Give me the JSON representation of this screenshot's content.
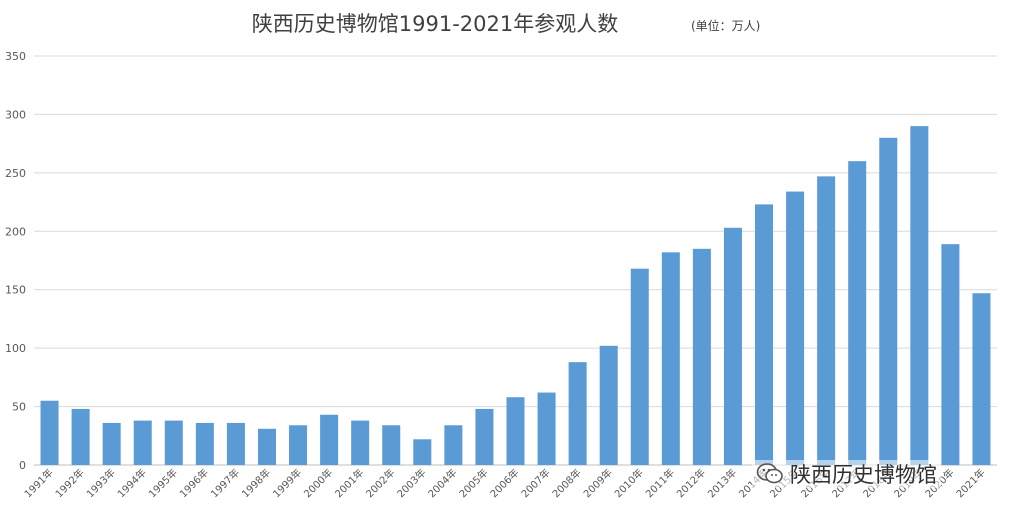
{
  "chart_data": {
    "type": "bar",
    "title": "陕西历史博物馆1991-2021年参观人数",
    "unit_note": "(单位：万人)",
    "xlabel": "",
    "ylabel": "",
    "ylim": [
      0,
      350
    ],
    "yticks": [
      0,
      50,
      100,
      150,
      200,
      250,
      300,
      350
    ],
    "grid": true,
    "legend": "none",
    "bar_color": "#5b9bd5",
    "categories": [
      "1991年",
      "1992年",
      "1993年",
      "1994年",
      "1995年",
      "1996年",
      "1997年",
      "1998年",
      "1999年",
      "2000年",
      "2001年",
      "2002年",
      "2003年",
      "2004年",
      "2005年",
      "2006年",
      "2007年",
      "2008年",
      "2009年",
      "2010年",
      "2011年",
      "2012年",
      "2013年",
      "2014年",
      "2015年",
      "2016年",
      "2017年",
      "2018年",
      "2019年",
      "2020年",
      "2021年"
    ],
    "values": [
      55,
      48,
      36,
      38,
      38,
      36,
      36,
      31,
      34,
      43,
      38,
      34,
      22,
      34,
      48,
      58,
      62,
      88,
      102,
      168,
      182,
      185,
      203,
      223,
      234,
      247,
      260,
      280,
      290,
      189,
      147
    ]
  },
  "watermark": {
    "text": "陕西历史博物馆",
    "icon": "wechat-icon"
  }
}
